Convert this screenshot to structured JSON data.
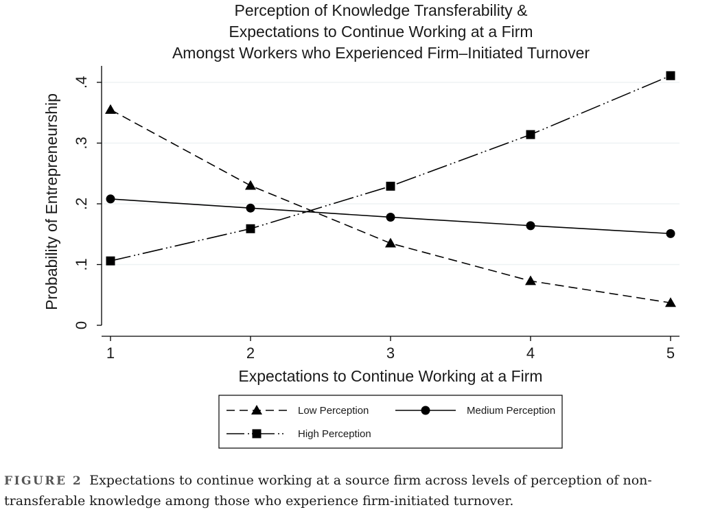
{
  "chart_data": {
    "type": "line",
    "title": [
      "Perception of Knowledge Transferability &",
      "Expectations to Continue Working at a Firm",
      "Amongst Workers who Experienced Firm–Initiated Turnover"
    ],
    "xlabel": "Expectations to Continue Working at a Firm",
    "ylabel": "Probability of Entrepreneurship",
    "x": [
      1,
      2,
      3,
      4,
      5
    ],
    "xticks": [
      "1",
      "2",
      "3",
      "4",
      "5"
    ],
    "yticks": [
      "0",
      ".1",
      ".2",
      ".3",
      ".4"
    ],
    "ytick_values": [
      0,
      0.1,
      0.2,
      0.3,
      0.4
    ],
    "xlim": [
      1,
      5
    ],
    "ylim": [
      0,
      0.4
    ],
    "grid": true,
    "legend_position": "bottom",
    "series": [
      {
        "name": "Low Perception",
        "values": [
          0.355,
          0.23,
          0.135,
          0.073,
          0.037
        ],
        "marker": "triangle",
        "dash": "dashed",
        "color": "#000000"
      },
      {
        "name": "Medium Perception",
        "values": [
          0.208,
          0.193,
          0.178,
          0.164,
          0.151
        ],
        "marker": "circle",
        "dash": "solid",
        "color": "#000000"
      },
      {
        "name": "High Perception",
        "values": [
          0.106,
          0.159,
          0.229,
          0.314,
          0.411
        ],
        "marker": "square",
        "dash": "dash-dot-dot",
        "color": "#000000"
      }
    ]
  },
  "caption": {
    "label": "FIGURE 2",
    "text": "Expectations to continue working at a source firm across levels of perception of non-transferable knowledge among those who experience firm-initiated turnover."
  }
}
